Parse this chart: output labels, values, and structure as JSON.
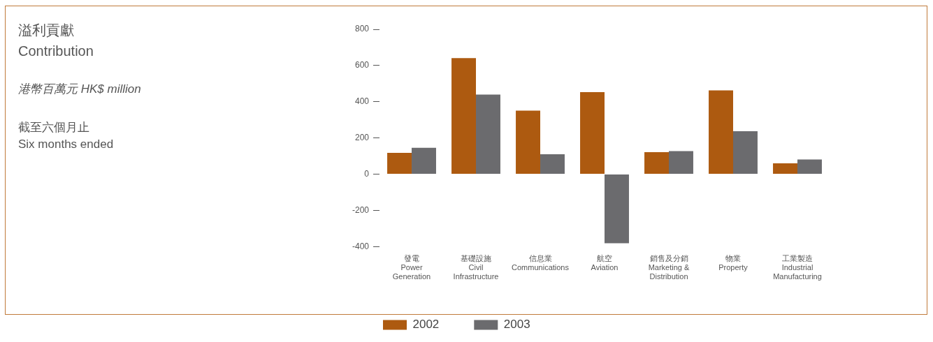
{
  "chart_data": {
    "type": "bar",
    "title": "溢利貢獻\nContribution",
    "subtitle": "港幣百萬元 HK$ million",
    "annotations": [
      "截至六個月止\nSix months ended"
    ],
    "categories": [
      "發電\nPower\nGeneration",
      "基礎設施\nCivil\nInfrastructure",
      "信息業\nCommunications",
      "航空\nAviation",
      "銷售及分銷\nMarketing &\nDistribution",
      "物業\nProperty",
      "工業製造\nIndustrial\nManufacturing"
    ],
    "series": [
      {
        "name": "2002",
        "color": "#ad5a10",
        "values": [
          118,
          641,
          351,
          453,
          122,
          463,
          60
        ]
      },
      {
        "name": "2003",
        "color": "#6b6b6e",
        "values": [
          146,
          440,
          110,
          -381,
          128,
          237,
          81
        ]
      }
    ],
    "ylim": [
      -400,
      800
    ],
    "yticks": [
      -400,
      -200,
      0,
      200,
      400,
      600,
      800
    ],
    "grid": false,
    "legend": "bottom left"
  }
}
